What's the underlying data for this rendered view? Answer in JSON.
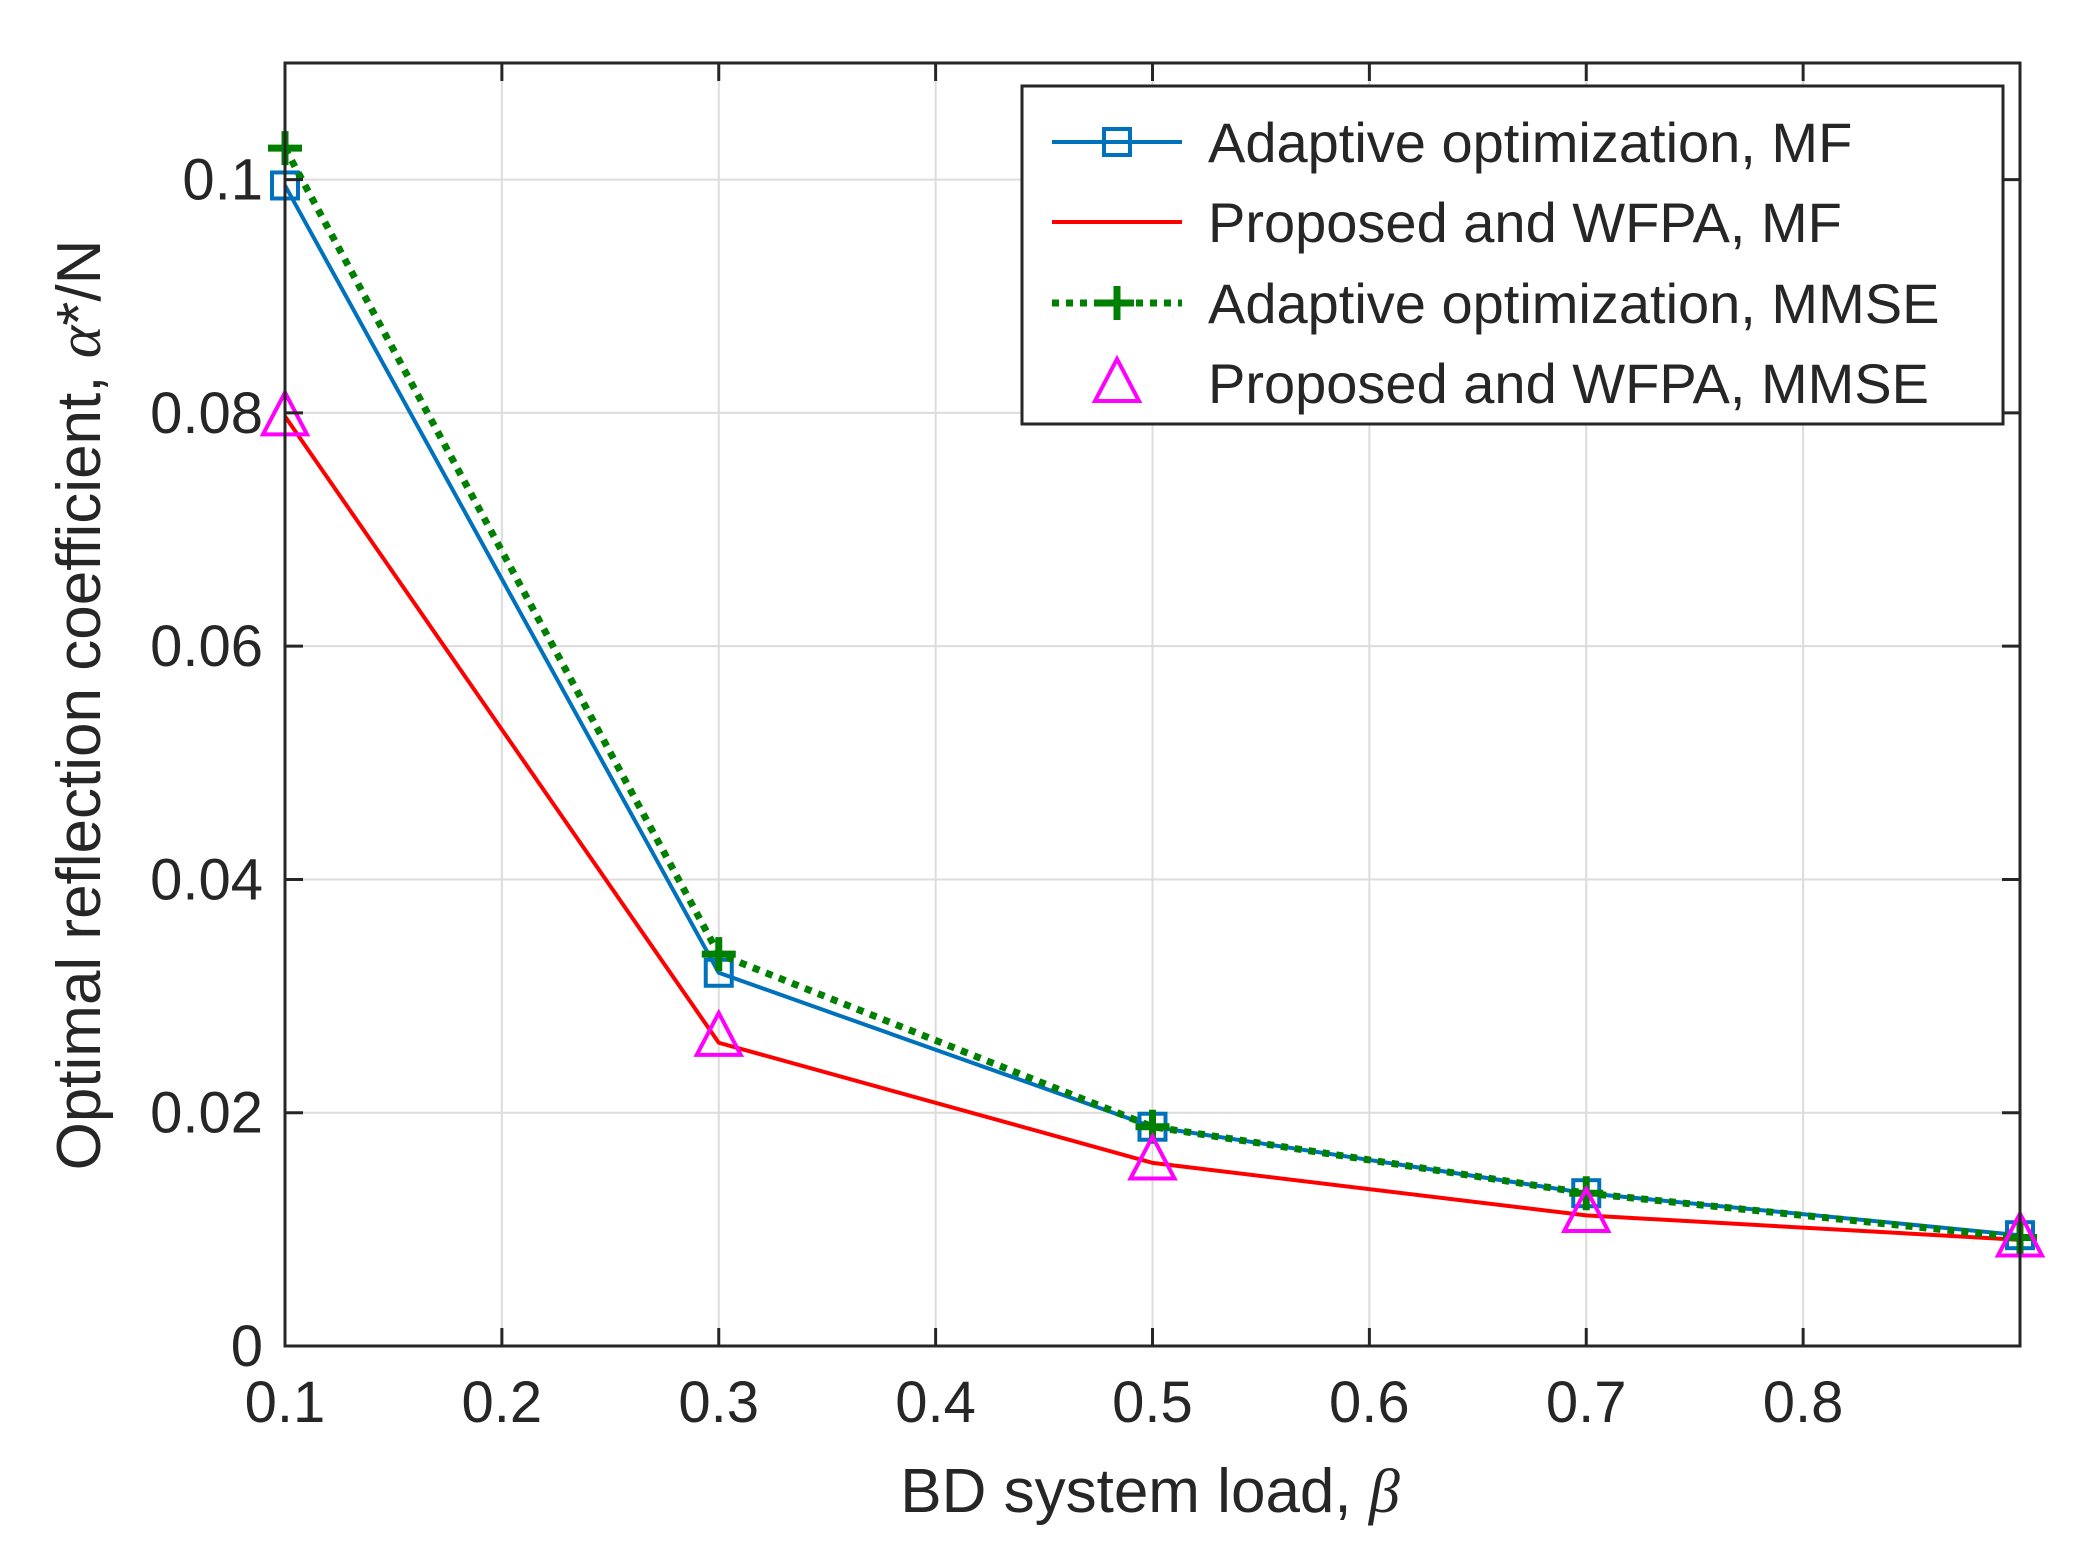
{
  "chart_data": {
    "type": "line",
    "title": "",
    "xlabel": "BD system load, ",
    "xlabel_symbol": "β",
    "ylabel": "Optimal reflection coefficient, ",
    "ylabel_symbol": "α",
    "ylabel_suffix": "*/N",
    "xlim": [
      0.1,
      0.9
    ],
    "ylim": [
      0,
      0.11
    ],
    "xticks": [
      0.1,
      0.2,
      0.3,
      0.4,
      0.5,
      0.6,
      0.7,
      0.8
    ],
    "xtick_labels": [
      "0.1",
      "0.2",
      "0.3",
      "0.4",
      "0.5",
      "0.6",
      "0.7",
      "0.8"
    ],
    "yticks": [
      0,
      0.02,
      0.04,
      0.06,
      0.08,
      0.1
    ],
    "ytick_labels": [
      "0",
      "0.02",
      "0.04",
      "0.06",
      "0.08",
      "0.1"
    ],
    "grid": true,
    "legend_position": "top-right",
    "x": [
      0.1,
      0.3,
      0.5,
      0.7,
      0.9
    ],
    "series": [
      {
        "name": "Adaptive optimization, MF",
        "values": [
          0.0995,
          0.032,
          0.0188,
          0.0131,
          0.0095
        ],
        "color": "#0072BD",
        "line": "solid",
        "marker": "square"
      },
      {
        "name": "Proposed and WFPA, MF",
        "values": [
          0.0797,
          0.026,
          0.0157,
          0.0112,
          0.0091
        ],
        "color": "#FF0000",
        "line": "solid",
        "marker": "none"
      },
      {
        "name": "Adaptive optimization, MMSE",
        "values": [
          0.1027,
          0.0336,
          0.0188,
          0.0131,
          0.0093
        ],
        "color": "#008000",
        "line": "dotted",
        "marker": "plus"
      },
      {
        "name": "Proposed and WFPA, MMSE",
        "values": [
          0.0797,
          0.0265,
          0.0159,
          0.0114,
          0.0093
        ],
        "color": "#FF00FF",
        "line": "none",
        "marker": "triangle"
      }
    ]
  }
}
